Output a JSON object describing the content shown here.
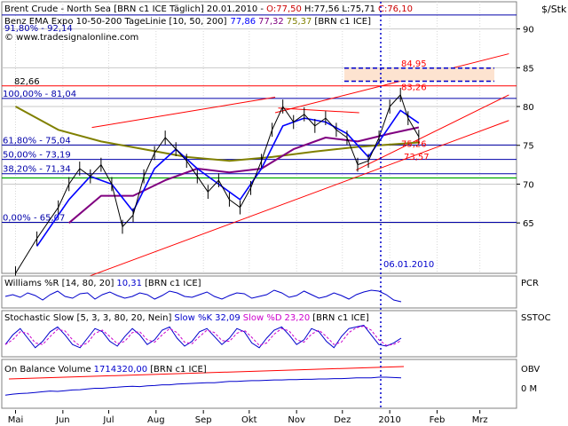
{
  "header": {
    "instrument": "Brent Crude - North Sea [BRN c1 ICE  Täglich] 20.01.2010 - ",
    "open": "O:77,50",
    "high": "H:77,56",
    "low": "L:75,71",
    "close": "C:76,10",
    "indicator": "Benz EMA Expo 10-50-200 TageLinie [10, 50, 200]",
    "ema10": "77,86",
    "ema50": "77,32",
    "ema200": "75,37",
    "indicator_suffix": "[BRN c1 ICE]",
    "watermark": "© www.tradesignalonline.com",
    "unit": "$/Stk"
  },
  "colors": {
    "price": "#000000",
    "ema10": "#0000ff",
    "ema50": "#800080",
    "ema200": "#808000",
    "trend": "#ff0000",
    "fib": "#0000aa",
    "green": "#00aa00",
    "open": "#cc0000"
  },
  "chart_data": {
    "type": "line",
    "x_ticks": [
      "Mai",
      "Jun",
      "Jul",
      "Aug",
      "Sep",
      "Okt",
      "Nov",
      "Dez",
      "2010",
      "Feb",
      "Mrz"
    ],
    "y_ticks": [
      65,
      70,
      75,
      80,
      85,
      90
    ],
    "ylim": [
      58.5,
      93.5
    ],
    "levels": [
      {
        "label": "82,66",
        "value": 82.66
      },
      {
        "label": "100,00% - 81,04",
        "value": 81.04
      },
      {
        "label": "61,80% - 75,04",
        "value": 75.04
      },
      {
        "label": "50,00% - 73,19",
        "value": 73.19
      },
      {
        "label": "38,20% - 71,34",
        "value": 71.34
      },
      {
        "label": "0,00% - 65,07",
        "value": 65.07
      }
    ],
    "annotations": [
      {
        "label": "84,95",
        "value": 84.95
      },
      {
        "label": "83,26",
        "value": 83.26
      },
      {
        "label": "75,26",
        "value": 75.26
      },
      {
        "label": "73,57",
        "value": 73.57
      }
    ],
    "top_level": {
      "label": "91,80% - 92,14",
      "value": 92.14
    },
    "marker_date": "06.01.2010",
    "price": [
      {
        "x": "2009-05-01",
        "y": 58.5
      },
      {
        "x": "2009-05-15",
        "y": 63
      },
      {
        "x": "2009-05-29",
        "y": 67
      },
      {
        "x": "2009-06-05",
        "y": 70
      },
      {
        "x": "2009-06-12",
        "y": 72
      },
      {
        "x": "2009-06-19",
        "y": 71
      },
      {
        "x": "2009-06-26",
        "y": 72.5
      },
      {
        "x": "2009-07-03",
        "y": 70
      },
      {
        "x": "2009-07-10",
        "y": 64.5
      },
      {
        "x": "2009-07-17",
        "y": 66
      },
      {
        "x": "2009-07-24",
        "y": 71
      },
      {
        "x": "2009-07-31",
        "y": 74
      },
      {
        "x": "2009-08-07",
        "y": 76
      },
      {
        "x": "2009-08-14",
        "y": 74.5
      },
      {
        "x": "2009-08-21",
        "y": 73
      },
      {
        "x": "2009-08-28",
        "y": 71
      },
      {
        "x": "2009-09-04",
        "y": 69
      },
      {
        "x": "2009-09-11",
        "y": 70.5
      },
      {
        "x": "2009-09-18",
        "y": 68
      },
      {
        "x": "2009-09-25",
        "y": 67
      },
      {
        "x": "2009-10-02",
        "y": 69.5
      },
      {
        "x": "2009-10-09",
        "y": 73
      },
      {
        "x": "2009-10-16",
        "y": 77
      },
      {
        "x": "2009-10-23",
        "y": 80
      },
      {
        "x": "2009-10-30",
        "y": 78
      },
      {
        "x": "2009-11-06",
        "y": 79
      },
      {
        "x": "2009-11-13",
        "y": 77.5
      },
      {
        "x": "2009-11-20",
        "y": 78.5
      },
      {
        "x": "2009-11-27",
        "y": 77
      },
      {
        "x": "2009-12-04",
        "y": 76
      },
      {
        "x": "2009-12-11",
        "y": 72.5
      },
      {
        "x": "2009-12-18",
        "y": 73
      },
      {
        "x": "2009-12-25",
        "y": 76
      },
      {
        "x": "2010-01-01",
        "y": 80
      },
      {
        "x": "2010-01-08",
        "y": 81.5
      },
      {
        "x": "2010-01-13",
        "y": 78.5
      },
      {
        "x": "2010-01-20",
        "y": 76.1
      }
    ],
    "ema10": [
      {
        "x": "2009-05-15",
        "y": 62
      },
      {
        "x": "2009-06-05",
        "y": 68
      },
      {
        "x": "2009-06-19",
        "y": 71
      },
      {
        "x": "2009-07-03",
        "y": 70
      },
      {
        "x": "2009-07-17",
        "y": 66.5
      },
      {
        "x": "2009-07-31",
        "y": 72
      },
      {
        "x": "2009-08-14",
        "y": 74.5
      },
      {
        "x": "2009-08-28",
        "y": 72
      },
      {
        "x": "2009-09-11",
        "y": 70
      },
      {
        "x": "2009-09-25",
        "y": 68
      },
      {
        "x": "2009-10-09",
        "y": 72
      },
      {
        "x": "2009-10-23",
        "y": 77.5
      },
      {
        "x": "2009-11-06",
        "y": 78.5
      },
      {
        "x": "2009-11-20",
        "y": 78
      },
      {
        "x": "2009-12-04",
        "y": 76.5
      },
      {
        "x": "2009-12-18",
        "y": 73.5
      },
      {
        "x": "2010-01-01",
        "y": 77.5
      },
      {
        "x": "2010-01-08",
        "y": 79.5
      },
      {
        "x": "2010-01-20",
        "y": 77.86
      }
    ],
    "ema50": [
      {
        "x": "2009-06-05",
        "y": 65
      },
      {
        "x": "2009-06-26",
        "y": 68.5
      },
      {
        "x": "2009-07-17",
        "y": 68.5
      },
      {
        "x": "2009-08-07",
        "y": 70.5
      },
      {
        "x": "2009-08-28",
        "y": 72
      },
      {
        "x": "2009-09-18",
        "y": 71.5
      },
      {
        "x": "2009-10-09",
        "y": 72
      },
      {
        "x": "2009-10-30",
        "y": 74.5
      },
      {
        "x": "2009-11-20",
        "y": 76
      },
      {
        "x": "2009-12-11",
        "y": 75.5
      },
      {
        "x": "2010-01-01",
        "y": 76.5
      },
      {
        "x": "2010-01-20",
        "y": 77.32
      }
    ],
    "ema200": [
      {
        "x": "2009-05-01",
        "y": 80
      },
      {
        "x": "2009-05-29",
        "y": 77
      },
      {
        "x": "2009-06-26",
        "y": 75.5
      },
      {
        "x": "2009-07-24",
        "y": 74.5
      },
      {
        "x": "2009-08-21",
        "y": 73.5
      },
      {
        "x": "2009-09-18",
        "y": 73
      },
      {
        "x": "2009-10-16",
        "y": 73.5
      },
      {
        "x": "2009-11-13",
        "y": 74.2
      },
      {
        "x": "2009-12-11",
        "y": 74.8
      },
      {
        "x": "2010-01-20",
        "y": 75.37
      }
    ]
  },
  "indicators": [
    {
      "name": "Williams %R [14, 80, 20]",
      "value": "10,31",
      "suffix": "[BRN c1 ICE]",
      "axis_label": "PCR",
      "series": [
        0.5,
        0.6,
        0.45,
        0.7,
        0.55,
        0.3,
        0.6,
        0.8,
        0.5,
        0.4,
        0.65,
        0.7,
        0.35,
        0.6,
        0.75,
        0.55,
        0.4,
        0.5,
        0.7,
        0.6,
        0.35,
        0.55,
        0.8,
        0.7,
        0.5,
        0.45,
        0.6,
        0.75,
        0.5,
        0.35,
        0.55,
        0.7,
        0.65,
        0.4,
        0.5,
        0.6,
        0.85,
        0.7,
        0.45,
        0.55,
        0.8,
        0.6,
        0.4,
        0.5,
        0.7,
        0.55,
        0.35,
        0.6,
        0.75,
        0.85,
        0.8,
        0.6,
        0.3,
        0.2
      ]
    },
    {
      "name": "Stochastic Slow [5, 3, 3, 80, 20, Nein]",
      "slow_k_label": "Slow %K",
      "slow_k": "32,09",
      "slow_d_label": "Slow %D",
      "slow_d": "23,20",
      "suffix": "[BRN c1 ICE]",
      "axis_label": "SSTOC",
      "series": [
        0.3,
        0.6,
        0.8,
        0.5,
        0.2,
        0.4,
        0.7,
        0.85,
        0.6,
        0.3,
        0.2,
        0.5,
        0.8,
        0.7,
        0.4,
        0.25,
        0.55,
        0.8,
        0.6,
        0.3,
        0.45,
        0.75,
        0.85,
        0.5,
        0.25,
        0.4,
        0.7,
        0.8,
        0.55,
        0.3,
        0.5,
        0.8,
        0.7,
        0.35,
        0.2,
        0.5,
        0.75,
        0.85,
        0.6,
        0.3,
        0.45,
        0.8,
        0.7,
        0.4,
        0.2,
        0.55,
        0.8,
        0.85,
        0.9,
        0.6,
        0.3,
        0.25,
        0.35,
        0.5
      ]
    },
    {
      "name": "On Balance Volume",
      "value": "1714320,00",
      "suffix": "[BRN c1 ICE]",
      "axis_label": "OBV",
      "zero_label": "0 M",
      "series": [
        0.3,
        0.33,
        0.35,
        0.36,
        0.38,
        0.4,
        0.42,
        0.41,
        0.43,
        0.45,
        0.46,
        0.48,
        0.5,
        0.5,
        0.52,
        0.53,
        0.55,
        0.56,
        0.55,
        0.57,
        0.58,
        0.6,
        0.6,
        0.62,
        0.63,
        0.64,
        0.65,
        0.66,
        0.66,
        0.68,
        0.7,
        0.7,
        0.71,
        0.72,
        0.72,
        0.73,
        0.74,
        0.74,
        0.75,
        0.75,
        0.76,
        0.76,
        0.77,
        0.77,
        0.78,
        0.78,
        0.79,
        0.8,
        0.8,
        0.8,
        0.82,
        0.82,
        0.81,
        0.8
      ]
    }
  ]
}
